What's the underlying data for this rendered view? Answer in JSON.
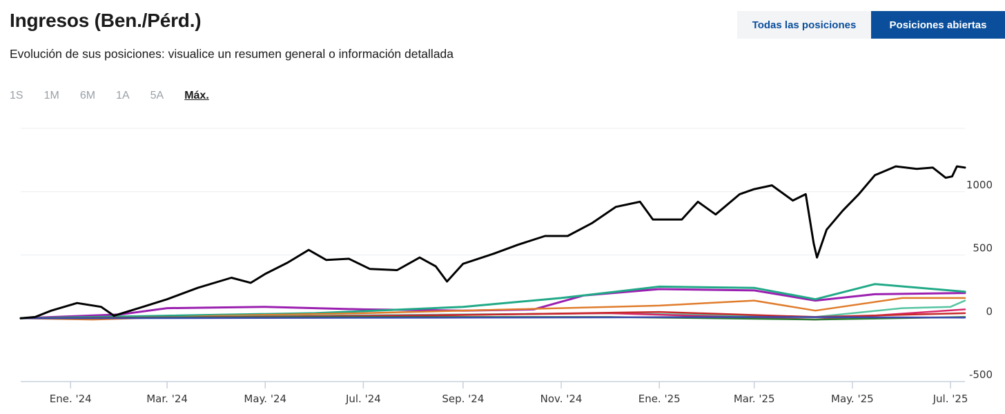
{
  "header": {
    "title": "Ingresos (Ben./Pérd.)",
    "subtitle": "Evolución de sus posiciones: visualice un resumen general o información detallada",
    "toggle_all": "Todas las posiciones",
    "toggle_open": "Posiciones abiertas"
  },
  "ranges": [
    {
      "label": "1S",
      "active": false
    },
    {
      "label": "1M",
      "active": false
    },
    {
      "label": "6M",
      "active": false
    },
    {
      "label": "1A",
      "active": false
    },
    {
      "label": "5A",
      "active": false
    },
    {
      "label": "Máx.",
      "active": true
    }
  ],
  "chart_data": {
    "type": "line",
    "title": "",
    "xlabel": "",
    "ylabel": "",
    "xlim": [
      "2023-12-01",
      "2025-07-10"
    ],
    "ylim": [
      -500,
      1500
    ],
    "y_axis_side": "right",
    "grid": "horizontal",
    "legend": "none",
    "y_ticks": [
      1000,
      500,
      0,
      -500
    ],
    "x_ticks": [
      {
        "date": "2024-01-01",
        "label": "Ene. '24"
      },
      {
        "date": "2024-03-01",
        "label": "Mar. '24"
      },
      {
        "date": "2024-05-01",
        "label": "May. '24"
      },
      {
        "date": "2024-07-01",
        "label": "Jul. '24"
      },
      {
        "date": "2024-09-01",
        "label": "Sep. '24"
      },
      {
        "date": "2024-11-01",
        "label": "Nov. '24"
      },
      {
        "date": "2025-01-01",
        "label": "Ene. '25"
      },
      {
        "date": "2025-03-01",
        "label": "Mar. '25"
      },
      {
        "date": "2025-05-01",
        "label": "May. '25"
      },
      {
        "date": "2025-07-01",
        "label": "Jul. '25"
      }
    ],
    "series": [
      {
        "color": "#000000",
        "width": 3,
        "points": [
          [
            "2023-12-01",
            0
          ],
          [
            "2023-12-10",
            10
          ],
          [
            "2023-12-20",
            60
          ],
          [
            "2024-01-05",
            120
          ],
          [
            "2024-01-20",
            90
          ],
          [
            "2024-01-28",
            20
          ],
          [
            "2024-02-15",
            90
          ],
          [
            "2024-03-01",
            150
          ],
          [
            "2024-03-20",
            240
          ],
          [
            "2024-04-10",
            320
          ],
          [
            "2024-04-22",
            280
          ],
          [
            "2024-05-01",
            350
          ],
          [
            "2024-05-15",
            440
          ],
          [
            "2024-05-28",
            540
          ],
          [
            "2024-06-08",
            460
          ],
          [
            "2024-06-22",
            470
          ],
          [
            "2024-07-05",
            390
          ],
          [
            "2024-07-22",
            380
          ],
          [
            "2024-08-05",
            480
          ],
          [
            "2024-08-15",
            410
          ],
          [
            "2024-08-22",
            290
          ],
          [
            "2024-09-01",
            430
          ],
          [
            "2024-09-20",
            510
          ],
          [
            "2024-10-05",
            580
          ],
          [
            "2024-10-22",
            650
          ],
          [
            "2024-11-05",
            650
          ],
          [
            "2024-11-20",
            750
          ],
          [
            "2024-12-05",
            880
          ],
          [
            "2024-12-20",
            920
          ],
          [
            "2024-12-28",
            780
          ],
          [
            "2025-01-15",
            780
          ],
          [
            "2025-01-25",
            920
          ],
          [
            "2025-02-05",
            820
          ],
          [
            "2025-02-20",
            980
          ],
          [
            "2025-03-01",
            1020
          ],
          [
            "2025-03-12",
            1050
          ],
          [
            "2025-03-25",
            930
          ],
          [
            "2025-04-02",
            980
          ],
          [
            "2025-04-07",
            590
          ],
          [
            "2025-04-09",
            480
          ],
          [
            "2025-04-15",
            700
          ],
          [
            "2025-04-25",
            850
          ],
          [
            "2025-05-05",
            980
          ],
          [
            "2025-05-15",
            1130
          ],
          [
            "2025-05-28",
            1200
          ],
          [
            "2025-06-10",
            1180
          ],
          [
            "2025-06-20",
            1190
          ],
          [
            "2025-06-28",
            1110
          ],
          [
            "2025-07-02",
            1120
          ],
          [
            "2025-07-05",
            1200
          ],
          [
            "2025-07-10",
            1190
          ]
        ]
      },
      {
        "color": "#9b1fb0",
        "width": 3,
        "points": [
          [
            "2023-12-01",
            0
          ],
          [
            "2024-02-01",
            30
          ],
          [
            "2024-03-01",
            80
          ],
          [
            "2024-05-01",
            90
          ],
          [
            "2024-07-01",
            70
          ],
          [
            "2024-09-01",
            60
          ],
          [
            "2024-10-15",
            70
          ],
          [
            "2024-11-15",
            180
          ],
          [
            "2025-01-01",
            230
          ],
          [
            "2025-03-01",
            220
          ],
          [
            "2025-04-08",
            140
          ],
          [
            "2025-05-15",
            190
          ],
          [
            "2025-07-10",
            200
          ]
        ]
      },
      {
        "color": "#20a987",
        "width": 3,
        "points": [
          [
            "2023-12-01",
            0
          ],
          [
            "2024-03-01",
            20
          ],
          [
            "2024-06-01",
            40
          ],
          [
            "2024-09-01",
            90
          ],
          [
            "2024-11-01",
            160
          ],
          [
            "2025-01-01",
            250
          ],
          [
            "2025-03-01",
            240
          ],
          [
            "2025-04-08",
            150
          ],
          [
            "2025-05-15",
            270
          ],
          [
            "2025-07-10",
            210
          ]
        ]
      },
      {
        "color": "#e07b2a",
        "width": 2.5,
        "points": [
          [
            "2023-12-01",
            0
          ],
          [
            "2024-01-15",
            -10
          ],
          [
            "2024-04-01",
            20
          ],
          [
            "2024-07-01",
            40
          ],
          [
            "2024-10-01",
            70
          ],
          [
            "2025-01-01",
            100
          ],
          [
            "2025-03-01",
            140
          ],
          [
            "2025-04-08",
            60
          ],
          [
            "2025-06-01",
            160
          ],
          [
            "2025-07-10",
            160
          ]
        ]
      },
      {
        "color": "#55c4a0",
        "width": 2.5,
        "points": [
          [
            "2023-12-01",
            0
          ],
          [
            "2024-06-01",
            20
          ],
          [
            "2024-12-01",
            40
          ],
          [
            "2025-04-08",
            10
          ],
          [
            "2025-06-01",
            80
          ],
          [
            "2025-07-01",
            90
          ],
          [
            "2025-07-10",
            140
          ]
        ]
      },
      {
        "color": "#d8286a",
        "width": 2.5,
        "points": [
          [
            "2023-12-01",
            0
          ],
          [
            "2024-06-01",
            15
          ],
          [
            "2024-12-01",
            40
          ],
          [
            "2025-04-08",
            -10
          ],
          [
            "2025-07-10",
            70
          ]
        ]
      },
      {
        "color": "#c62828",
        "width": 2.5,
        "points": [
          [
            "2023-12-01",
            0
          ],
          [
            "2024-08-01",
            20
          ],
          [
            "2025-01-01",
            50
          ],
          [
            "2025-04-08",
            10
          ],
          [
            "2025-07-10",
            40
          ]
        ]
      },
      {
        "color": "#2e7d32",
        "width": 2.5,
        "points": [
          [
            "2023-12-01",
            0
          ],
          [
            "2024-06-01",
            10
          ],
          [
            "2024-12-01",
            10
          ],
          [
            "2025-04-08",
            -10
          ],
          [
            "2025-07-10",
            10
          ]
        ]
      },
      {
        "color": "#3949ab",
        "width": 2.5,
        "points": [
          [
            "2023-12-01",
            0
          ],
          [
            "2024-09-01",
            5
          ],
          [
            "2025-03-01",
            10
          ],
          [
            "2025-07-10",
            5
          ]
        ]
      }
    ]
  }
}
